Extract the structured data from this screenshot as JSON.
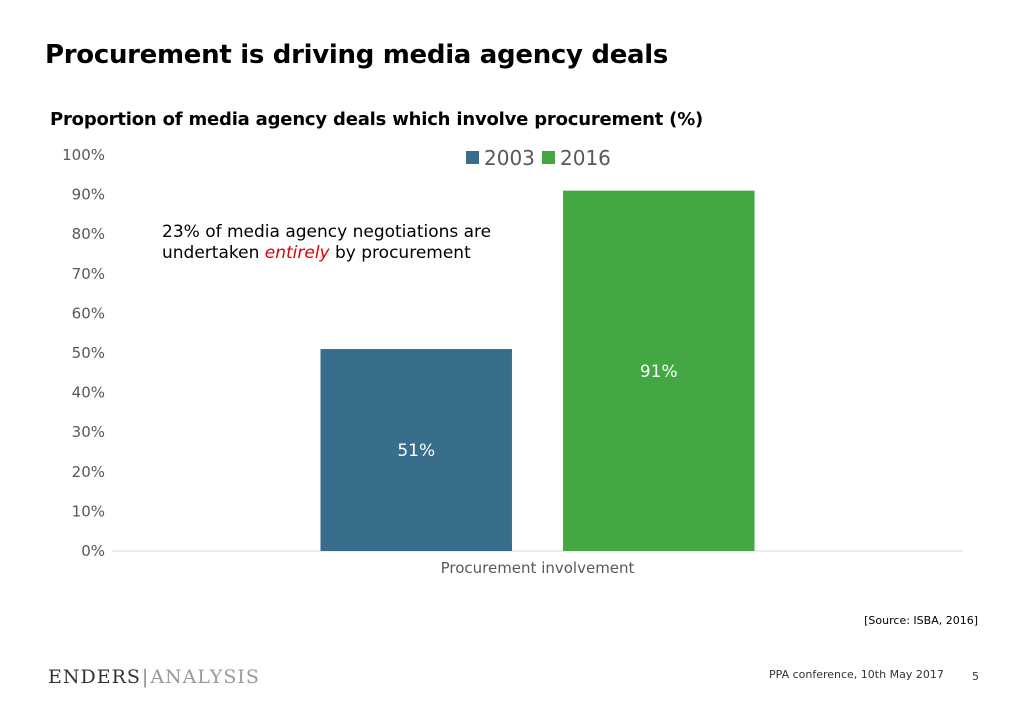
{
  "slide": {
    "title": "Procurement is driving media agency deals",
    "source": "[Source: ISBA, 2016]",
    "footer": "PPA conference, 10th May 2017",
    "page_number": "5",
    "logo_part1": "ENDERS",
    "logo_separator": "|",
    "logo_part2": "ANALYSIS"
  },
  "annotation": {
    "before": "23% of media agency negotiations are undertaken ",
    "emphasis": "entirely",
    "after": " by procurement",
    "emphasis_color": "#e00000"
  },
  "chart_data": {
    "type": "bar",
    "title": "Proportion of media agency deals which involve procurement (%)",
    "categories": [
      "Procurement involvement"
    ],
    "series": [
      {
        "name": "2003",
        "values": [
          51
        ],
        "color": "#386e8c",
        "label": "51%"
      },
      {
        "name": "2016",
        "values": [
          91
        ],
        "color": "#43a743",
        "label": "91%"
      }
    ],
    "ylim": [
      0,
      100
    ],
    "yticks": [
      "0%",
      "10%",
      "20%",
      "30%",
      "40%",
      "50%",
      "60%",
      "70%",
      "80%",
      "90%",
      "100%"
    ],
    "legend": "top",
    "grid": false
  }
}
